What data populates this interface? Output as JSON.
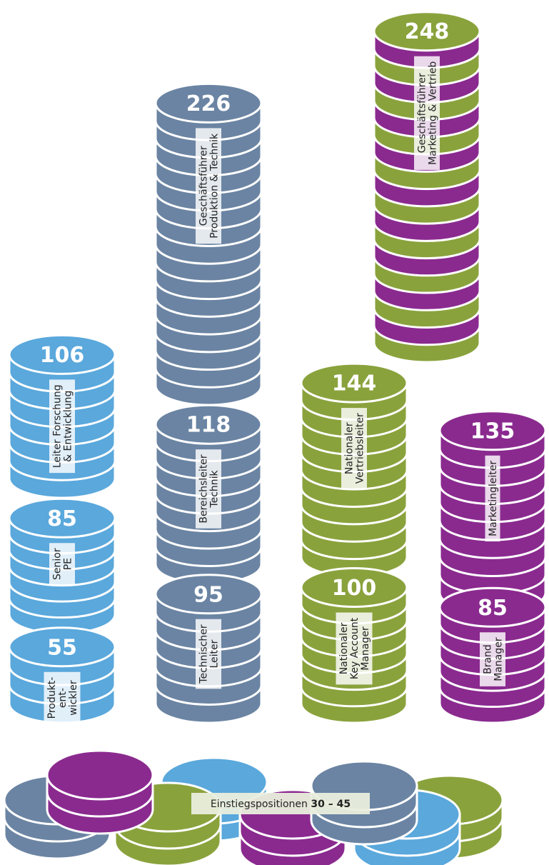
{
  "stacks": [
    {
      "value": 248,
      "label": [
        "Geschäftsführer",
        "Marketing & Vertrieb"
      ],
      "colors": [
        "#8aa23c",
        "#8a2a8f"
      ]
    },
    {
      "value": 226,
      "label": [
        "Geschäftsführer",
        "Produktion & Technik"
      ],
      "colors": [
        "#6b84a3"
      ]
    },
    {
      "value": 106,
      "label": [
        "Leiter Forschung",
        "& Entwicklung"
      ],
      "colors": [
        "#5aa8dc"
      ]
    },
    {
      "value": 85,
      "label": [
        "Senior",
        "PE"
      ],
      "colors": [
        "#5aa8dc"
      ]
    },
    {
      "value": 55,
      "label": [
        "Produkt-",
        "ent-",
        "wickler"
      ],
      "colors": [
        "#5aa8dc"
      ]
    },
    {
      "value": 118,
      "label": [
        "Bereichsleiter",
        "Technik"
      ],
      "colors": [
        "#6b84a3"
      ]
    },
    {
      "value": 95,
      "label": [
        "Technischer",
        "Leiter"
      ],
      "colors": [
        "#6b84a3"
      ]
    },
    {
      "value": 144,
      "label": [
        "Nationaler",
        "Vertriebsleiter"
      ],
      "colors": [
        "#8aa23c"
      ]
    },
    {
      "value": 100,
      "label": [
        "Nationaler",
        "Key Account",
        "Manager"
      ],
      "colors": [
        "#8aa23c"
      ]
    },
    {
      "value": 135,
      "label": [
        "Marketingleiter"
      ],
      "colors": [
        "#8a2a8f"
      ]
    },
    {
      "value": 85,
      "label": [
        "Brand",
        "Manager"
      ],
      "colors": [
        "#8a2a8f"
      ]
    }
  ],
  "entry": {
    "label": "Einstiegspositionen",
    "range": "30 – 45"
  }
}
